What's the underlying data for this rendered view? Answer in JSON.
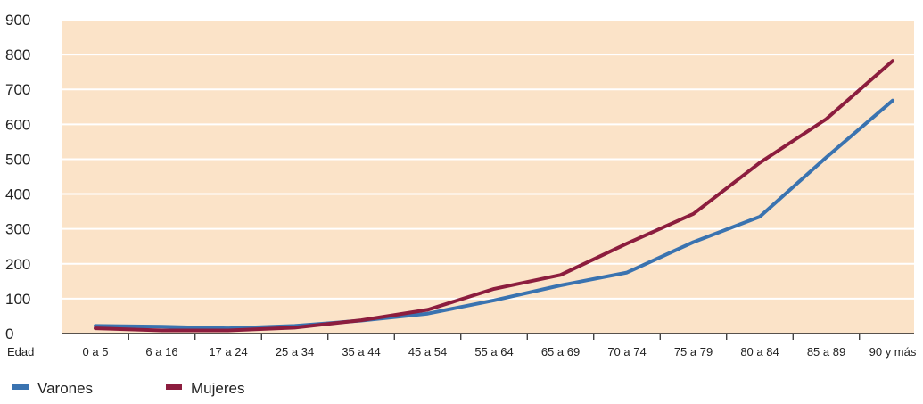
{
  "chart_data": {
    "type": "line",
    "x_axis_label": "Edad",
    "categories": [
      "0 a 5",
      "6 a 16",
      "17 a 24",
      "25 a 34",
      "35 a 44",
      "45 a 54",
      "55 a 64",
      "65 a 69",
      "70 a 74",
      "75 a 79",
      "80 a 84",
      "85 a 89",
      "90 y más"
    ],
    "y_ticks": [
      "900",
      "800",
      "700",
      "600",
      "500",
      "400",
      "300",
      "200",
      "100",
      "0"
    ],
    "ylim": [
      0,
      900
    ],
    "grid": true,
    "background_color": "#fbe3c8",
    "legend_position": "bottom-left",
    "series": [
      {
        "name": "Varones",
        "color": "#3a73b0",
        "values": [
          22,
          20,
          15,
          22,
          37,
          57,
          95,
          138,
          175,
          262,
          335,
          505,
          668
        ]
      },
      {
        "name": "Mujeres",
        "color": "#8c1d3e",
        "values": [
          15,
          9,
          9,
          17,
          38,
          68,
          128,
          168,
          258,
          343,
          490,
          615,
          782
        ]
      }
    ]
  }
}
